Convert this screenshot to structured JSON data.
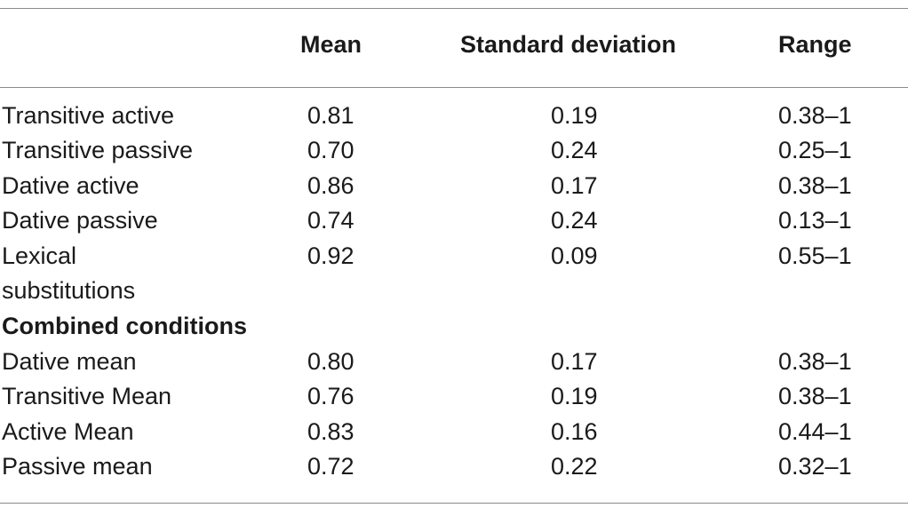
{
  "table": {
    "headers": [
      "",
      "Mean",
      "Standard deviation",
      "Range"
    ],
    "rows": [
      {
        "label": "Transitive active",
        "mean": "0.81",
        "sd": "0.19",
        "range": "0.38–1"
      },
      {
        "label": "Transitive passive",
        "mean": "0.70",
        "sd": "0.24",
        "range": "0.25–1"
      },
      {
        "label": "Dative active",
        "mean": "0.86",
        "sd": "0.17",
        "range": "0.38–1"
      },
      {
        "label": "Dative passive",
        "mean": "0.74",
        "sd": "0.24",
        "range": "0.13–1"
      },
      {
        "label": "Lexical",
        "label_line2": "substitutions",
        "mean": "0.92",
        "sd": "0.09",
        "range": "0.55–1"
      }
    ],
    "section_heading": "Combined conditions",
    "combined_rows": [
      {
        "label": "Dative mean",
        "mean": "0.80",
        "sd": "0.17",
        "range": "0.38–1"
      },
      {
        "label": "Transitive Mean",
        "mean": "0.76",
        "sd": "0.19",
        "range": "0.38–1"
      },
      {
        "label": "Active Mean",
        "mean": "0.83",
        "sd": "0.16",
        "range": "0.44–1"
      },
      {
        "label": "Passive mean",
        "mean": "0.72",
        "sd": "0.22",
        "range": "0.32–1"
      }
    ]
  }
}
